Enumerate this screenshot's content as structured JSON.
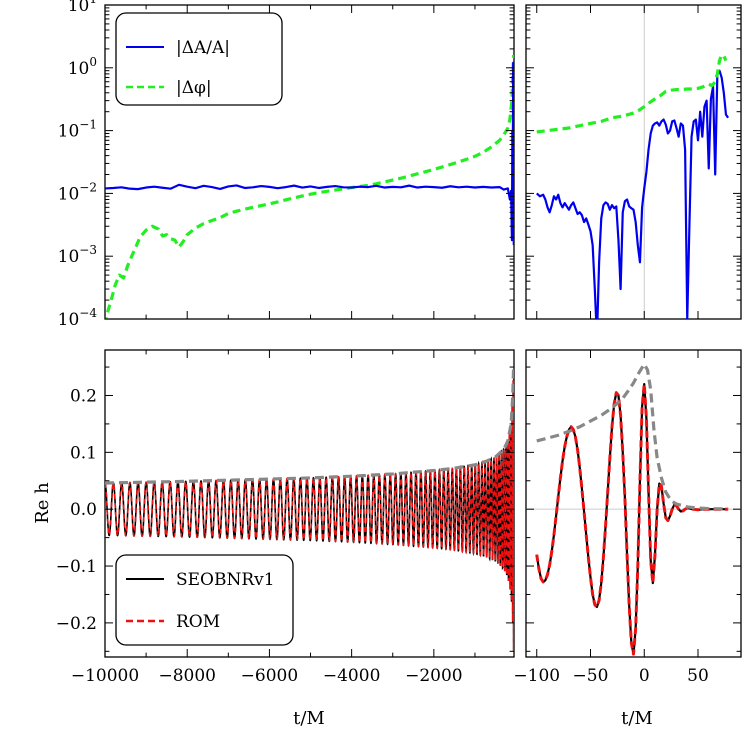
{
  "chart_data": [
    {
      "type": "line",
      "panel": "top-left",
      "yscale": "log",
      "xlim": [
        -10000,
        -50
      ],
      "ylim": [
        0.0001,
        10
      ],
      "yticks": [
        {
          "value": 10,
          "label": "10",
          "exp": "1"
        },
        {
          "value": 1,
          "label": "10",
          "exp": "0"
        },
        {
          "value": 0.1,
          "label": "10",
          "exp": "−1"
        },
        {
          "value": 0.01,
          "label": "10",
          "exp": "−2"
        },
        {
          "value": 0.001,
          "label": "10",
          "exp": "−3"
        },
        {
          "value": 0.0001,
          "label": "10",
          "exp": "−4"
        }
      ],
      "legend": {
        "position": "top-left"
      },
      "series": [
        {
          "name": "|ΔA/A|",
          "color": "#0000ee",
          "style": "solid",
          "x": [
            -10000,
            -9800,
            -9600,
            -9400,
            -9200,
            -9000,
            -8800,
            -8600,
            -8400,
            -8200,
            -8000,
            -7800,
            -7600,
            -7400,
            -7200,
            -7000,
            -6800,
            -6600,
            -6400,
            -6200,
            -6000,
            -5800,
            -5600,
            -5400,
            -5200,
            -5000,
            -4800,
            -4600,
            -4400,
            -4200,
            -4000,
            -3800,
            -3600,
            -3400,
            -3200,
            -3000,
            -2800,
            -2600,
            -2400,
            -2200,
            -2000,
            -1800,
            -1600,
            -1400,
            -1200,
            -1000,
            -800,
            -600,
            -400,
            -300,
            -200,
            -150,
            -120,
            -100,
            -90,
            -80,
            -70,
            -60,
            -55
          ],
          "values": [
            0.012,
            0.0122,
            0.0125,
            0.0119,
            0.0117,
            0.0124,
            0.0128,
            0.0123,
            0.0119,
            0.0137,
            0.0128,
            0.0121,
            0.0132,
            0.0126,
            0.0118,
            0.0129,
            0.0134,
            0.0122,
            0.0125,
            0.0131,
            0.0127,
            0.0121,
            0.0126,
            0.0133,
            0.0124,
            0.0129,
            0.0122,
            0.0127,
            0.0131,
            0.0125,
            0.0124,
            0.0128,
            0.0126,
            0.0132,
            0.0124,
            0.0127,
            0.0125,
            0.0133,
            0.0124,
            0.0128,
            0.0126,
            0.0123,
            0.013,
            0.0125,
            0.0128,
            0.0124,
            0.0127,
            0.0124,
            0.0126,
            0.0115,
            0.012,
            0.008,
            0.011,
            0.0018,
            0.1,
            0.02,
            1.2,
            0.3,
            0.0015
          ]
        },
        {
          "name": "|Δφ|",
          "color": "#22ee22",
          "style": "dashed",
          "x": [
            -10000,
            -9950,
            -9850,
            -9750,
            -9650,
            -9550,
            -9450,
            -9350,
            -9250,
            -9150,
            -9000,
            -8850,
            -8700,
            -8600,
            -8500,
            -8400,
            -8300,
            -8200,
            -8100,
            -8000,
            -7800,
            -7600,
            -7400,
            -7200,
            -7000,
            -6800,
            -6600,
            -6400,
            -6200,
            -6000,
            -5800,
            -5600,
            -5400,
            -5200,
            -5000,
            -4800,
            -4600,
            -4400,
            -4200,
            -4000,
            -3800,
            -3600,
            -3400,
            -3200,
            -3000,
            -2800,
            -2600,
            -2400,
            -2200,
            -2000,
            -1800,
            -1600,
            -1400,
            -1200,
            -1000,
            -800,
            -600,
            -400,
            -300,
            -200,
            -150,
            -100,
            -80,
            -60
          ],
          "values": [
            8e-05,
            0.00012,
            0.0002,
            0.00035,
            0.0005,
            0.00045,
            0.0007,
            0.001,
            0.0014,
            0.002,
            0.0026,
            0.003,
            0.0027,
            0.0021,
            0.0022,
            0.0019,
            0.0018,
            0.0014,
            0.0017,
            0.0022,
            0.0028,
            0.0033,
            0.0037,
            0.0041,
            0.0048,
            0.0052,
            0.0056,
            0.006,
            0.0064,
            0.0068,
            0.0073,
            0.0079,
            0.0085,
            0.0091,
            0.0097,
            0.0103,
            0.0108,
            0.0113,
            0.0118,
            0.0124,
            0.0129,
            0.0134,
            0.0142,
            0.0152,
            0.0163,
            0.0175,
            0.0189,
            0.0205,
            0.0222,
            0.0241,
            0.0263,
            0.0288,
            0.0317,
            0.035,
            0.039,
            0.045,
            0.055,
            0.07,
            0.085,
            0.11,
            0.15,
            0.3,
            0.7,
            1.6
          ]
        }
      ]
    },
    {
      "type": "line",
      "panel": "top-right",
      "yscale": "log",
      "xlim": [
        -110,
        90
      ],
      "ylim": [
        0.0001,
        10
      ],
      "series": [
        {
          "name": "|ΔA/A|",
          "color": "#0000ee",
          "style": "solid",
          "x": [
            -100,
            -97,
            -94,
            -92,
            -90,
            -88,
            -86,
            -84,
            -82,
            -80,
            -78,
            -76,
            -74,
            -72,
            -70,
            -68,
            -66,
            -64,
            -62,
            -60,
            -58,
            -56,
            -54,
            -52,
            -50,
            -48,
            -46,
            -44,
            -42,
            -40,
            -38,
            -36,
            -34,
            -32,
            -30,
            -28,
            -26,
            -24,
            -22,
            -20,
            -18,
            -16,
            -14,
            -12,
            -10,
            -8,
            -6,
            -4,
            -2,
            0,
            2,
            4,
            6,
            8,
            10,
            12,
            14,
            16,
            18,
            20,
            22,
            24,
            26,
            28,
            30,
            32,
            34,
            36,
            38,
            40,
            42,
            44,
            46,
            48,
            50,
            52,
            54,
            56,
            58,
            60,
            62,
            64,
            66,
            68,
            70,
            72,
            74,
            76,
            78
          ],
          "values": [
            0.01,
            0.009,
            0.0095,
            0.008,
            0.006,
            0.005,
            0.0065,
            0.009,
            0.008,
            0.0095,
            0.007,
            0.006,
            0.007,
            0.0062,
            0.0055,
            0.0065,
            0.0072,
            0.0058,
            0.0047,
            0.005,
            0.0045,
            0.0035,
            0.004,
            0.0032,
            0.0025,
            0.0015,
            0.0003,
            5e-05,
            0.0008,
            0.004,
            0.0065,
            0.0072,
            0.0068,
            0.0055,
            0.0065,
            0.0058,
            0.0062,
            0.0018,
            0.0003,
            0.005,
            0.0075,
            0.008,
            0.0062,
            0.0058,
            0.0055,
            0.0035,
            0.0015,
            0.0008,
            0.006,
            0.012,
            0.022,
            0.05,
            0.09,
            0.12,
            0.13,
            0.135,
            0.12,
            0.14,
            0.15,
            0.125,
            0.09,
            0.1,
            0.14,
            0.145,
            0.11,
            0.08,
            0.13,
            0.12,
            0.05,
            0.0001,
            0.003,
            0.08,
            0.14,
            0.15,
            0.07,
            0.2,
            0.08,
            0.24,
            0.3,
            0.025,
            0.32,
            0.5,
            0.02,
            0.8,
            0.9,
            0.7,
            0.4,
            0.18,
            0.16
          ]
        },
        {
          "name": "|Δφ|",
          "color": "#22ee22",
          "style": "dashed",
          "x": [
            -100,
            -90,
            -80,
            -70,
            -60,
            -50,
            -40,
            -30,
            -20,
            -10,
            -5,
            0,
            5,
            10,
            15,
            20,
            25,
            30,
            35,
            40,
            45,
            50,
            55,
            60,
            63,
            66,
            68,
            70,
            72,
            74,
            76
          ],
          "values": [
            0.095,
            0.1,
            0.105,
            0.11,
            0.12,
            0.13,
            0.14,
            0.16,
            0.17,
            0.19,
            0.21,
            0.24,
            0.28,
            0.32,
            0.36,
            0.42,
            0.44,
            0.45,
            0.45,
            0.46,
            0.46,
            0.47,
            0.5,
            0.55,
            0.52,
            0.6,
            0.8,
            1.3,
            1.6,
            1.55,
            1.3
          ]
        }
      ]
    },
    {
      "type": "line",
      "panel": "bottom-left",
      "xlim": [
        -10000,
        -50
      ],
      "ylim": [
        -0.26,
        0.28
      ],
      "xticks": [
        -10000,
        -8000,
        -6000,
        -4000,
        -2000
      ],
      "yticks": [
        -0.2,
        -0.1,
        0.0,
        0.1,
        0.2
      ],
      "xlabel": "t/M",
      "ylabel": "Re h",
      "legend": {
        "position": "bottom-left"
      },
      "amplitude_envelope": {
        "t": [
          -10000,
          -9000,
          -8000,
          -7000,
          -6000,
          -5000,
          -4000,
          -3000,
          -2000,
          -1500,
          -1000,
          -700,
          -500,
          -300,
          -200,
          -120,
          -80,
          -60
        ],
        "values": [
          0.046,
          0.0475,
          0.049,
          0.051,
          0.053,
          0.055,
          0.058,
          0.062,
          0.068,
          0.072,
          0.078,
          0.085,
          0.092,
          0.105,
          0.12,
          0.15,
          0.2,
          0.25
        ]
      },
      "phase_cycles": 78,
      "series": [
        {
          "name": "SEOBNRv1",
          "color": "#000000",
          "style": "solid"
        },
        {
          "name": "ROM",
          "color": "#ee1111",
          "style": "dashed"
        },
        {
          "name": "",
          "color": "#888888",
          "style": "dashed"
        }
      ]
    },
    {
      "type": "line",
      "panel": "bottom-right",
      "xlim": [
        -110,
        90
      ],
      "ylim": [
        -0.26,
        0.28
      ],
      "xticks": [
        -100,
        -50,
        0,
        50
      ],
      "xtick_labels": [
        "−100",
        "−50",
        "0",
        "50"
      ],
      "xlabel": "t/M",
      "envelope": {
        "t": [
          -100,
          -90,
          -80,
          -70,
          -60,
          -50,
          -40,
          -30,
          -20,
          -15,
          -10,
          -5,
          0,
          3,
          6,
          9,
          12,
          16,
          20,
          25,
          30,
          40,
          50,
          60,
          78
        ],
        "values": [
          0.12,
          0.125,
          0.13,
          0.137,
          0.145,
          0.155,
          0.165,
          0.178,
          0.195,
          0.208,
          0.222,
          0.24,
          0.255,
          0.245,
          0.21,
          0.14,
          0.09,
          0.055,
          0.03,
          0.015,
          0.009,
          0.004,
          0.002,
          0.001,
          0.0005
        ]
      },
      "waveform": {
        "t": [
          -100,
          -98,
          -96,
          -94,
          -92,
          -90,
          -88,
          -86,
          -84,
          -82,
          -80,
          -78,
          -76,
          -74,
          -72,
          -70,
          -68,
          -66,
          -64,
          -62,
          -60,
          -58,
          -56,
          -54,
          -52,
          -50,
          -48,
          -46,
          -44,
          -42,
          -40,
          -38,
          -36,
          -34,
          -32,
          -30,
          -28,
          -26,
          -24,
          -22,
          -20,
          -18,
          -16,
          -14,
          -12,
          -10,
          -8,
          -6,
          -4,
          -2,
          0,
          2,
          4,
          6,
          8,
          10,
          12,
          14,
          16,
          18,
          20,
          22,
          24,
          26,
          28,
          30,
          32,
          34,
          36,
          38,
          40,
          45,
          50,
          55,
          60,
          65,
          70,
          75,
          78
        ],
        "values": [
          -0.08,
          -0.105,
          -0.122,
          -0.128,
          -0.125,
          -0.115,
          -0.098,
          -0.074,
          -0.045,
          -0.012,
          0.022,
          0.055,
          0.085,
          0.11,
          0.128,
          0.14,
          0.145,
          0.14,
          0.127,
          0.104,
          0.073,
          0.036,
          -0.004,
          -0.045,
          -0.085,
          -0.12,
          -0.15,
          -0.168,
          -0.172,
          -0.16,
          -0.13,
          -0.085,
          -0.03,
          0.03,
          0.09,
          0.145,
          0.185,
          0.205,
          0.2,
          0.165,
          0.1,
          0.02,
          -0.08,
          -0.17,
          -0.235,
          -0.255,
          -0.21,
          -0.1,
          0.05,
          0.18,
          0.22,
          0.16,
          0.03,
          -0.09,
          -0.13,
          -0.08,
          0.0,
          0.045,
          0.04,
          0.01,
          -0.015,
          -0.02,
          -0.012,
          0.0,
          0.008,
          0.006,
          0.0,
          -0.004,
          -0.003,
          0.0,
          0.002,
          0.0,
          -0.001,
          0.0,
          0.0,
          0.0,
          0.0,
          0.0,
          0.0
        ]
      },
      "series": [
        {
          "name": "SEOBNRv1",
          "color": "#000000",
          "style": "solid"
        },
        {
          "name": "ROM",
          "color": "#ee1111",
          "style": "dashed"
        },
        {
          "name": "",
          "color": "#888888",
          "style": "dashed"
        }
      ]
    }
  ]
}
